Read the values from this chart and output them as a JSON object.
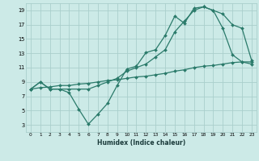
{
  "background_color": "#cceae7",
  "grid_color": "#aacfcc",
  "line_color": "#2a7a6a",
  "xlabel": "Humidex (Indice chaleur)",
  "xlim": [
    -0.5,
    23.5
  ],
  "ylim": [
    2,
    20
  ],
  "xticks": [
    0,
    1,
    2,
    3,
    4,
    5,
    6,
    7,
    8,
    9,
    10,
    11,
    12,
    13,
    14,
    15,
    16,
    17,
    18,
    19,
    20,
    21,
    22,
    23
  ],
  "yticks": [
    3,
    5,
    7,
    9,
    11,
    13,
    15,
    17,
    19
  ],
  "line1_x": [
    0,
    1,
    2,
    3,
    4,
    5,
    6,
    7,
    8,
    9,
    10,
    11,
    12,
    13,
    14,
    15,
    16,
    17,
    18,
    19,
    20,
    21,
    22,
    23
  ],
  "line1_y": [
    8.0,
    9.0,
    8.0,
    8.0,
    7.5,
    5.2,
    3.1,
    4.5,
    6.0,
    8.5,
    10.8,
    11.2,
    13.1,
    13.5,
    15.5,
    18.2,
    17.2,
    19.3,
    19.5,
    19.0,
    16.5,
    12.8,
    11.8,
    11.5
  ],
  "line2_x": [
    0,
    1,
    2,
    3,
    4,
    5,
    6,
    7,
    8,
    9,
    10,
    11,
    12,
    13,
    14,
    15,
    16,
    17,
    18,
    19,
    20,
    21,
    22,
    23
  ],
  "line2_y": [
    8.0,
    9.0,
    8.0,
    8.0,
    8.0,
    8.0,
    8.0,
    8.5,
    9.0,
    9.5,
    10.5,
    11.0,
    11.5,
    12.5,
    13.5,
    16.0,
    17.5,
    19.0,
    19.5,
    19.0,
    18.5,
    17.0,
    16.5,
    12.0
  ],
  "line3_x": [
    0,
    1,
    2,
    3,
    4,
    5,
    6,
    7,
    8,
    9,
    10,
    11,
    12,
    13,
    14,
    15,
    16,
    17,
    18,
    19,
    20,
    21,
    22,
    23
  ],
  "line3_y": [
    8.0,
    8.2,
    8.3,
    8.5,
    8.5,
    8.7,
    8.8,
    9.0,
    9.2,
    9.3,
    9.5,
    9.7,
    9.8,
    10.0,
    10.2,
    10.5,
    10.7,
    11.0,
    11.2,
    11.3,
    11.5,
    11.7,
    11.8,
    11.8
  ]
}
